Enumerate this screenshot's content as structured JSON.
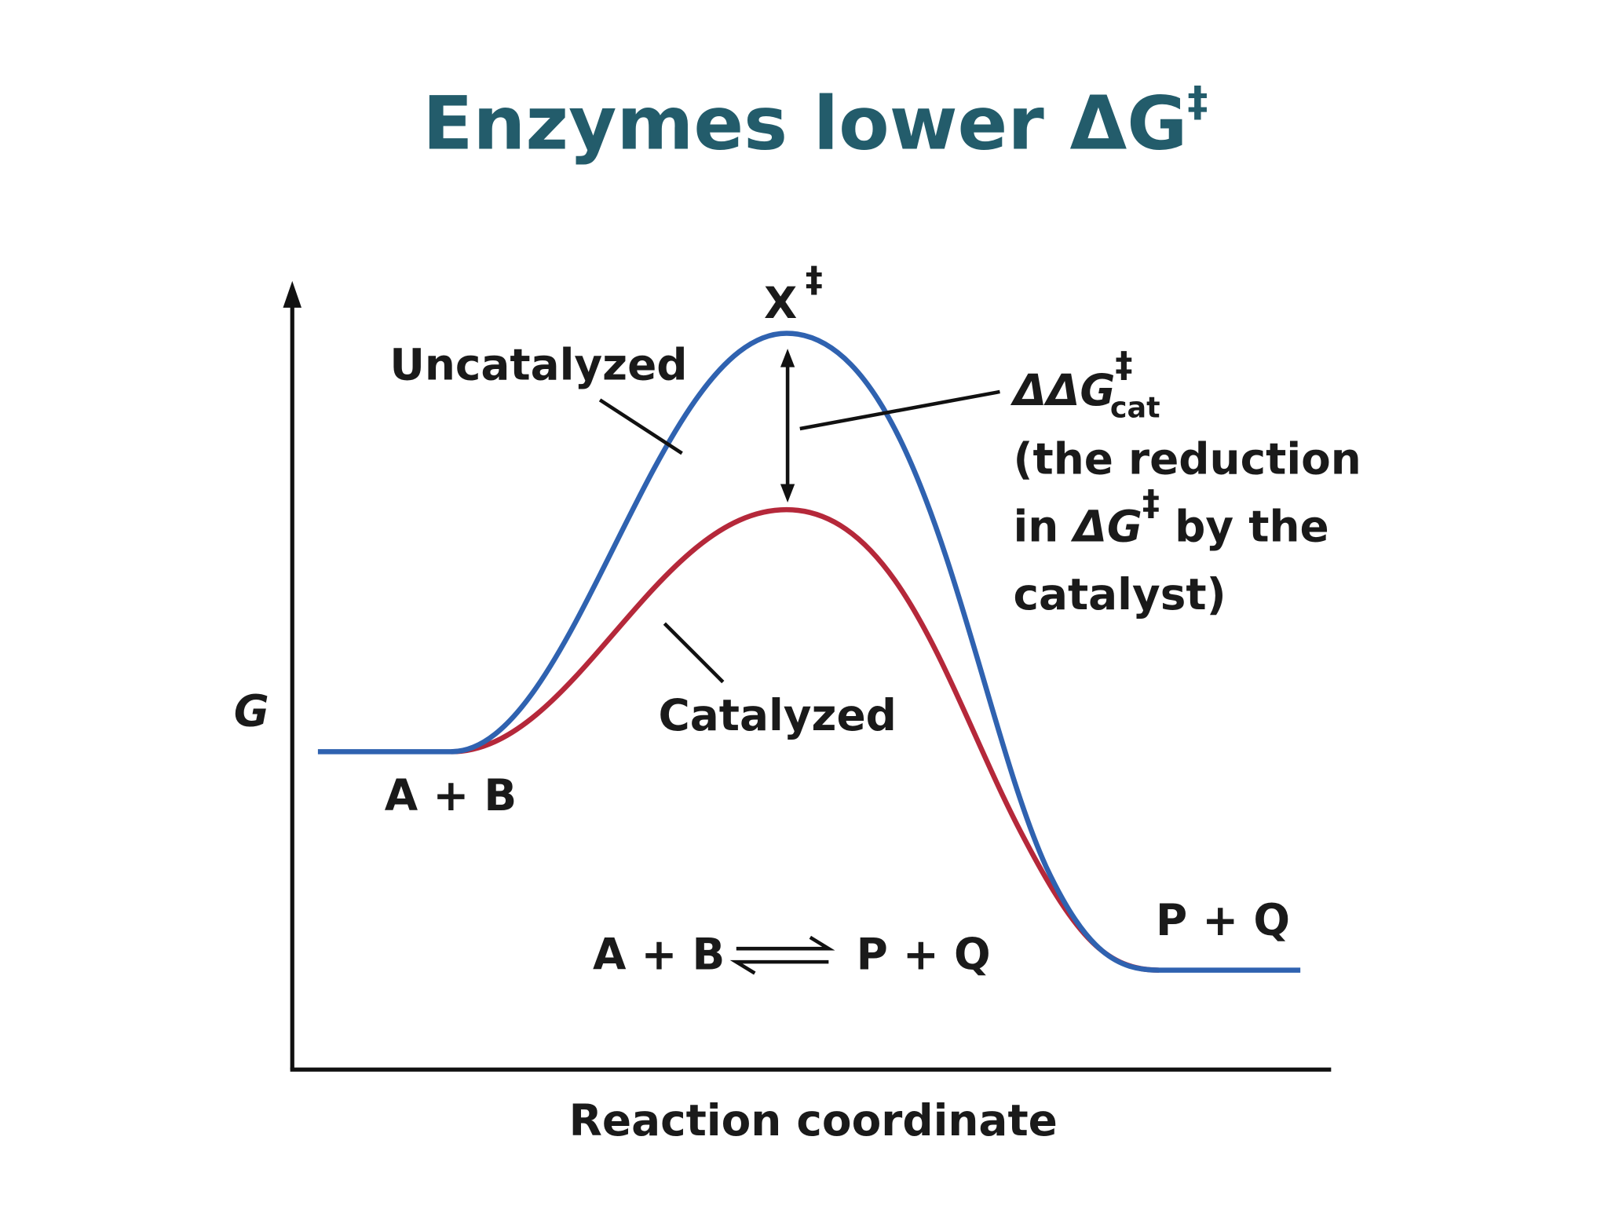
{
  "title": {
    "text": "Enzymes lower ΔG",
    "superscript": "‡"
  },
  "axes": {
    "y_label": "G",
    "x_label": "Reaction coordinate"
  },
  "transition_state": {
    "text": "X",
    "superscript": "‡"
  },
  "curves": {
    "uncatalyzed": "Uncatalyzed",
    "catalyzed": "Catalyzed"
  },
  "reactants": "A + B",
  "products": "P + Q",
  "equation": {
    "left": "A + B",
    "right": "P + Q"
  },
  "annotation": {
    "symbol": "ΔΔG",
    "superscript": "‡",
    "subscript": "cat",
    "lines": [
      "(the reduction",
      "in ",
      "ΔG",
      "‡",
      " by the",
      "catalyst)"
    ]
  }
}
